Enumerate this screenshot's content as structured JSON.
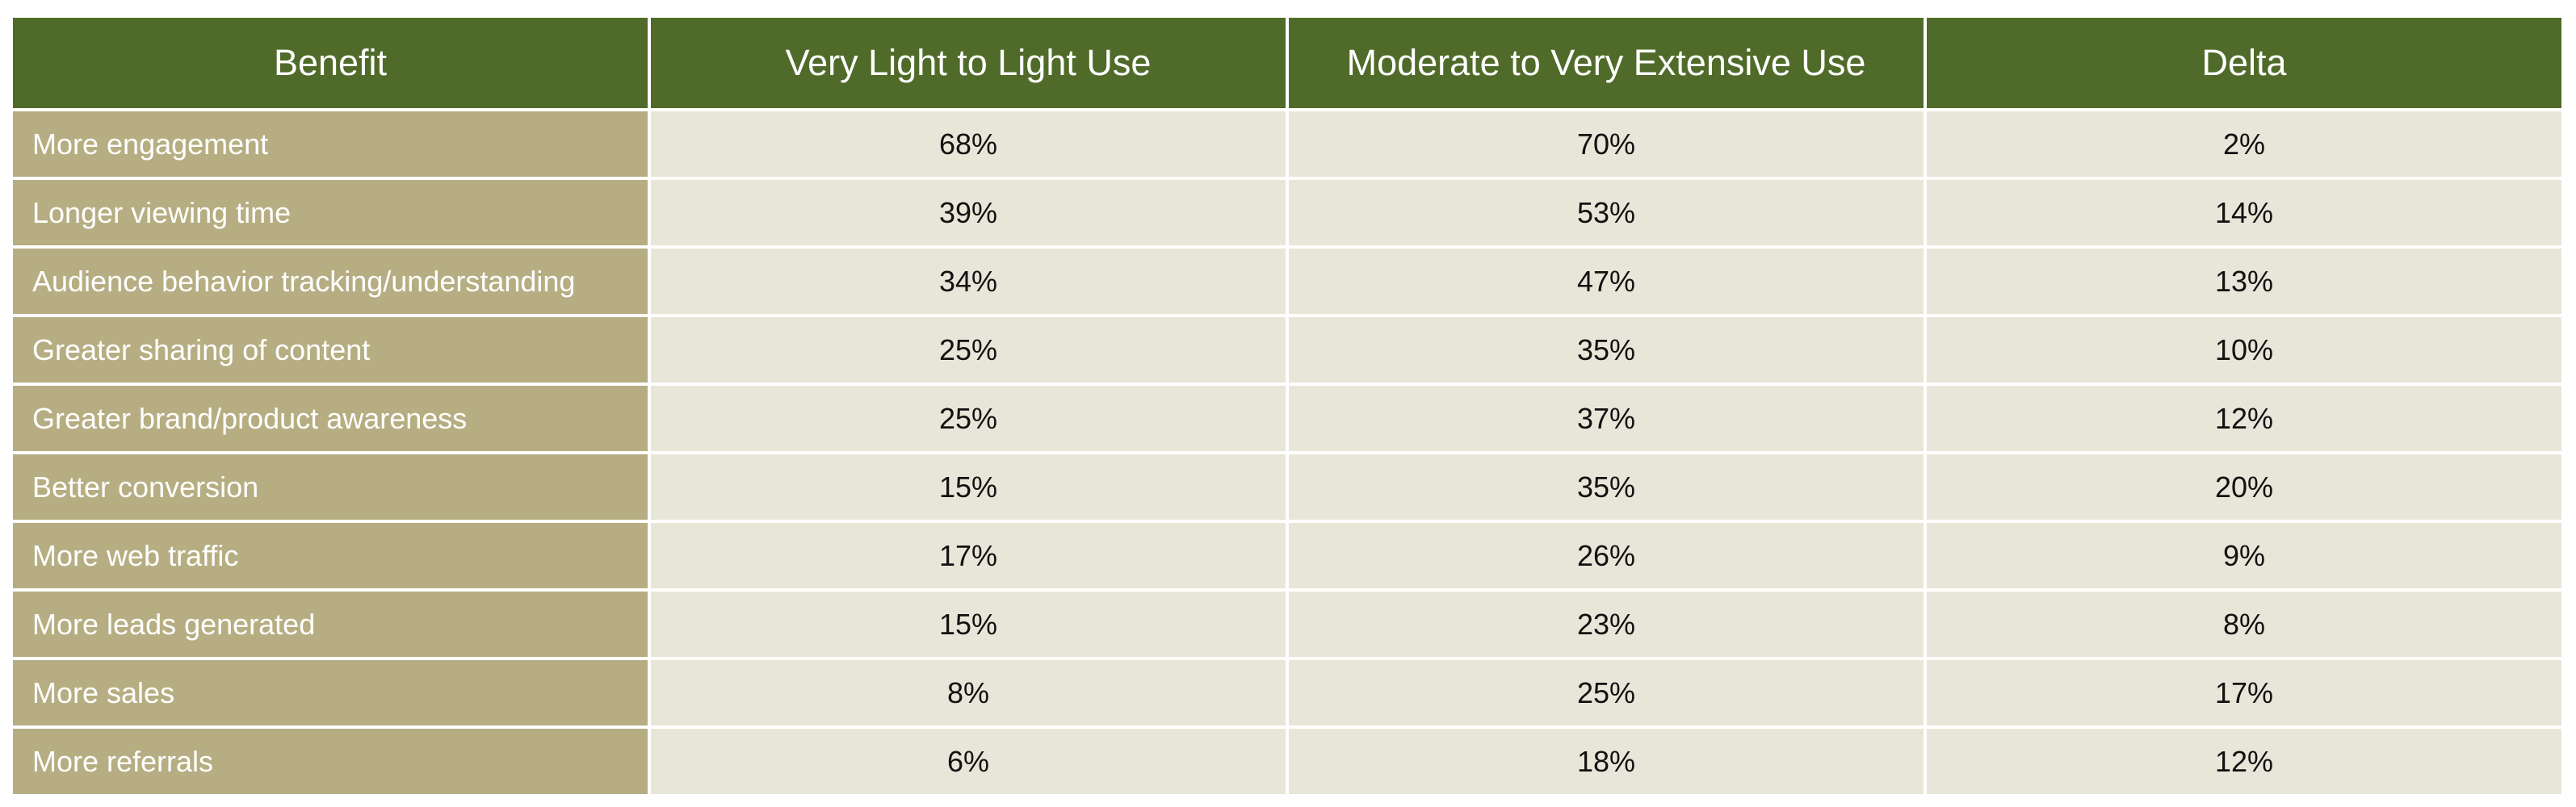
{
  "table": {
    "header": [
      "Benefit",
      "Very Light to Light Use",
      "Moderate to Very Extensive Use",
      "Delta"
    ],
    "rows": [
      [
        "More engagement",
        "68%",
        "70%",
        "2%"
      ],
      [
        "Longer viewing time",
        "39%",
        "53%",
        "14%"
      ],
      [
        "Audience behavior tracking/understanding",
        "34%",
        "47%",
        "13%"
      ],
      [
        "Greater sharing of content",
        "25%",
        "35%",
        "10%"
      ],
      [
        "Greater brand/product awareness",
        "25%",
        "37%",
        "12%"
      ],
      [
        "Better conversion",
        "15%",
        "35%",
        "20%"
      ],
      [
        "More web traffic",
        "17%",
        "26%",
        "9%"
      ],
      [
        "More leads generated",
        "15%",
        "23%",
        "8%"
      ],
      [
        "More sales",
        "8%",
        "25%",
        "17%"
      ],
      [
        "More referrals",
        "6%",
        "18%",
        "12%"
      ]
    ]
  }
}
